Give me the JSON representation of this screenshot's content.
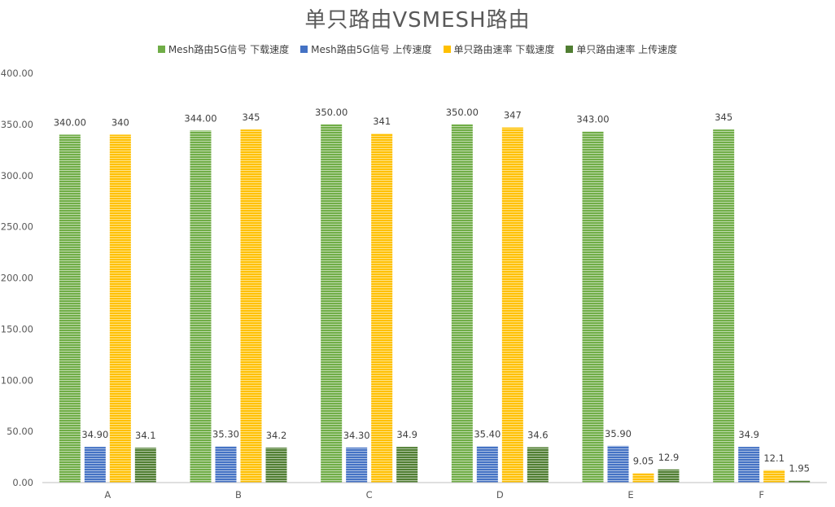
{
  "chart_data": {
    "type": "bar",
    "title": "单只路由VSMESH路由",
    "categories": [
      "A",
      "B",
      "C",
      "D",
      "E",
      "F"
    ],
    "ylim": [
      0,
      400
    ],
    "yticks": [
      "0.00",
      "50.00",
      "100.00",
      "150.00",
      "200.00",
      "250.00",
      "300.00",
      "350.00",
      "400.00"
    ],
    "legend_position": "top",
    "grid": false,
    "series": [
      {
        "name": "Mesh路由5G信号 下载速度",
        "color": "#70AD47",
        "values": [
          340,
          344,
          350,
          350,
          343,
          345
        ],
        "labels": [
          "340.00",
          "344.00",
          "350.00",
          "350.00",
          "343.00",
          "345"
        ]
      },
      {
        "name": "Mesh路由5G信号 上传速度",
        "color": "#4472C4",
        "values": [
          34.9,
          35.3,
          34.3,
          35.4,
          35.9,
          34.9
        ],
        "labels": [
          "34.90",
          "35.30",
          "34.30",
          "35.40",
          "35.90",
          "34.9"
        ]
      },
      {
        "name": "单只路由速率 下载速度",
        "color": "#FFC000",
        "values": [
          340,
          345,
          341,
          347,
          9.05,
          12.1
        ],
        "labels": [
          "340",
          "345",
          "341",
          "347",
          "9.05",
          "12.1"
        ]
      },
      {
        "name": "单只路由速率 上传速度",
        "color": "#507E32",
        "values": [
          34.1,
          34.2,
          34.9,
          34.6,
          12.9,
          1.95
        ],
        "labels": [
          "34.1",
          "34.2",
          "34.9",
          "34.6",
          "12.9",
          "1.95"
        ]
      }
    ]
  }
}
